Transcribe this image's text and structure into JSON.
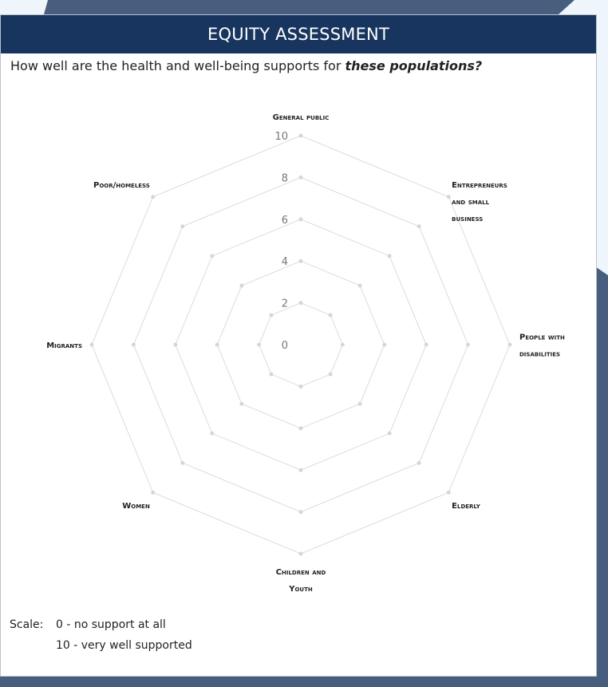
{
  "header": {
    "title": "EQUITY ASSESSMENT"
  },
  "question": {
    "prefix": "How well are the health and well-being supports for ",
    "emphasis": "these populations?"
  },
  "scale": {
    "label": "Scale:",
    "min_text": "0 - no support at all",
    "max_text": "10 - very well supported"
  },
  "colors": {
    "header": "#17355e",
    "background_shape": "#475e7e",
    "grid": "#dcdcdc"
  },
  "chart_data": {
    "type": "radar",
    "axes": [
      [
        "General public"
      ],
      [
        "Entrepreneurs",
        "and small",
        "business"
      ],
      [
        "People with",
        "disabilities"
      ],
      [
        "Elderly"
      ],
      [
        "Children and",
        "Youth"
      ],
      [
        "Women"
      ],
      [
        "Migrants"
      ],
      [
        "Poor/homeless"
      ]
    ],
    "ticks": [
      "0",
      "2",
      "4",
      "6",
      "8",
      "10"
    ],
    "range": [
      0,
      10
    ],
    "series": [],
    "grid": true
  }
}
